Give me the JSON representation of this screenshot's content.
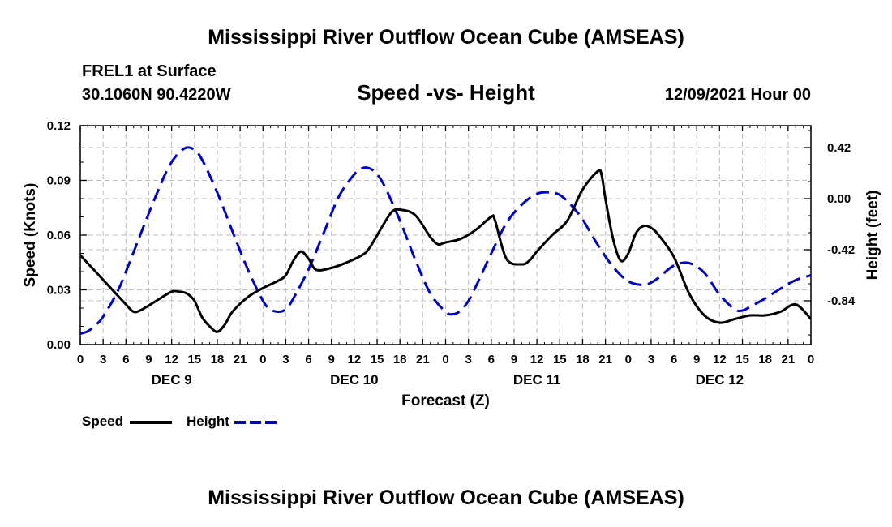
{
  "page": {
    "title_top": "Mississippi River Outflow Ocean Cube (AMSEAS)",
    "station": "FREL1 at Surface",
    "coords": "30.1060N  90.4220W",
    "subtitle": "Speed -vs- Height",
    "datetime": "12/09/2021 Hour 00",
    "title_bottom": "Mississippi River Outflow Ocean Cube (AMSEAS)"
  },
  "legend": {
    "speed_label": "Speed",
    "height_label": "Height"
  },
  "colors": {
    "speed": "#000000",
    "height": "#0000cc",
    "grid": "#bdbdbd"
  },
  "chart_data": {
    "type": "line",
    "title": "Speed -vs- Height",
    "xlabel": "Forecast (Z)",
    "ylabel": "Speed (Knots)",
    "y2label": "Height (feet)",
    "x_unit": "forecast hour",
    "xlim": [
      0,
      96
    ],
    "ylim": [
      0,
      0.12
    ],
    "y2lim": [
      -1.2,
      0.6
    ],
    "x_ticks": [
      0,
      3,
      6,
      9,
      12,
      15,
      18,
      21,
      24,
      27,
      30,
      33,
      36,
      39,
      42,
      45,
      48,
      51,
      54,
      57,
      60,
      63,
      66,
      69,
      72,
      75,
      78,
      81,
      84,
      87,
      90,
      93,
      96
    ],
    "x_tick_labels": [
      "0",
      "3",
      "6",
      "9",
      "12",
      "15",
      "18",
      "21",
      "0",
      "3",
      "6",
      "9",
      "12",
      "15",
      "18",
      "21",
      "0",
      "3",
      "6",
      "9",
      "12",
      "15",
      "18",
      "21",
      "0",
      "3",
      "6",
      "9",
      "12",
      "15",
      "18",
      "21",
      "0"
    ],
    "day_labels": [
      {
        "label": "DEC 9",
        "x": 12
      },
      {
        "label": "DEC 10",
        "x": 36
      },
      {
        "label": "DEC 11",
        "x": 60
      },
      {
        "label": "DEC 12",
        "x": 84
      }
    ],
    "y_ticks": [
      0.0,
      0.03,
      0.06,
      0.09,
      0.12
    ],
    "y_tick_labels": [
      "0.00",
      "0.03",
      "0.06",
      "0.09",
      "0.12"
    ],
    "y2_ticks": [
      0.42,
      0.0,
      -0.42,
      -0.84
    ],
    "y2_tick_labels": [
      "0.42",
      "0.00",
      "-0.42",
      "-0.84"
    ],
    "grid": true,
    "series": [
      {
        "name": "Speed",
        "axis": "left",
        "x": [
          0,
          2,
          4,
          6,
          7,
          8,
          10,
          12,
          13,
          14,
          15,
          16,
          17,
          18,
          19,
          20,
          22,
          24,
          26,
          27,
          28,
          29,
          30,
          31,
          33,
          35,
          37,
          38,
          40,
          41,
          42,
          44,
          46,
          47,
          48,
          50,
          52,
          54,
          54.5,
          56,
          58,
          59,
          60,
          62,
          64,
          66,
          68,
          68.5,
          69,
          70,
          71,
          72,
          73,
          74,
          75,
          76,
          78,
          80,
          82,
          84,
          86,
          88,
          90,
          92,
          94,
          96
        ],
        "values": [
          0.049,
          0.04,
          0.031,
          0.022,
          0.018,
          0.019,
          0.024,
          0.029,
          0.029,
          0.028,
          0.024,
          0.015,
          0.01,
          0.007,
          0.011,
          0.018,
          0.026,
          0.031,
          0.035,
          0.038,
          0.046,
          0.051,
          0.047,
          0.041,
          0.042,
          0.045,
          0.049,
          0.053,
          0.067,
          0.073,
          0.074,
          0.071,
          0.059,
          0.055,
          0.056,
          0.058,
          0.063,
          0.07,
          0.068,
          0.047,
          0.044,
          0.046,
          0.051,
          0.06,
          0.068,
          0.085,
          0.095,
          0.093,
          0.08,
          0.058,
          0.046,
          0.05,
          0.061,
          0.065,
          0.064,
          0.06,
          0.048,
          0.028,
          0.016,
          0.012,
          0.014,
          0.016,
          0.016,
          0.018,
          0.022,
          0.014
        ]
      },
      {
        "name": "Height",
        "axis": "right",
        "x": [
          0,
          1,
          2,
          3,
          5,
          7,
          9,
          11,
          12,
          13,
          14,
          15,
          16,
          18,
          20,
          22,
          24,
          25,
          26,
          27,
          28,
          30,
          32,
          34,
          36,
          37,
          38,
          39,
          40,
          42,
          44,
          46,
          48,
          49,
          50,
          51,
          52,
          54,
          56,
          58,
          60,
          62,
          63,
          64,
          65,
          66,
          68,
          70,
          72,
          74,
          75,
          76,
          78,
          80,
          82,
          84,
          86,
          87,
          88,
          90,
          92,
          94,
          96
        ],
        "values": [
          -1.11,
          -1.09,
          -1.04,
          -0.97,
          -0.75,
          -0.44,
          -0.12,
          0.18,
          0.3,
          0.38,
          0.42,
          0.4,
          0.32,
          0.05,
          -0.27,
          -0.58,
          -0.84,
          -0.91,
          -0.93,
          -0.91,
          -0.82,
          -0.58,
          -0.28,
          0.02,
          0.2,
          0.25,
          0.25,
          0.2,
          0.1,
          -0.18,
          -0.5,
          -0.78,
          -0.93,
          -0.95,
          -0.92,
          -0.84,
          -0.72,
          -0.45,
          -0.2,
          -0.05,
          0.04,
          0.05,
          0.03,
          -0.02,
          -0.09,
          -0.17,
          -0.38,
          -0.56,
          -0.68,
          -0.71,
          -0.69,
          -0.65,
          -0.55,
          -0.53,
          -0.61,
          -0.79,
          -0.91,
          -0.92,
          -0.89,
          -0.82,
          -0.74,
          -0.67,
          -0.63
        ]
      }
    ]
  }
}
